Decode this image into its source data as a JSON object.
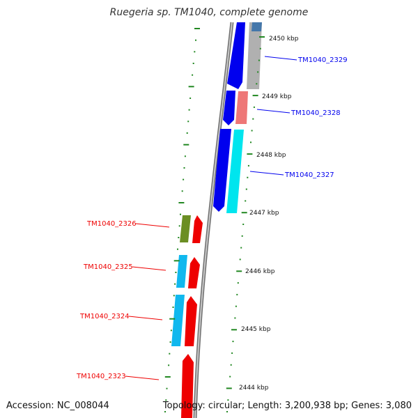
{
  "title": "Ruegeria sp. TM1040, complete genome",
  "footer": {
    "accession": "Accession: NC_008044",
    "info": "Topology: circular; Length: 3,200,938 bp; Genes: 3,080"
  },
  "scale_labels": [
    "2450 kbp",
    "2449 kbp",
    "2448 kbp",
    "2447 kbp",
    "2446 kbp",
    "2445 kbp",
    "2444 kbp"
  ],
  "genes_forward": [
    {
      "id": "TM1040_2329",
      "color": "#0000ee"
    },
    {
      "id": "TM1040_2328",
      "color": "#0000ee"
    },
    {
      "id": "TM1040_2327",
      "color": "#0000ee"
    }
  ],
  "genes_reverse": [
    {
      "id": "TM1040_2326",
      "color": "#ee0000"
    },
    {
      "id": "TM1040_2325",
      "color": "#ee0000"
    },
    {
      "id": "TM1040_2324",
      "color": "#ee0000"
    },
    {
      "id": "TM1040_2323",
      "color": "#ee0000"
    }
  ],
  "colors": {
    "backbone": "#909090",
    "tick": "#228822",
    "forward_strand": "#0000ee",
    "reverse_strand": "#ee0000"
  }
}
